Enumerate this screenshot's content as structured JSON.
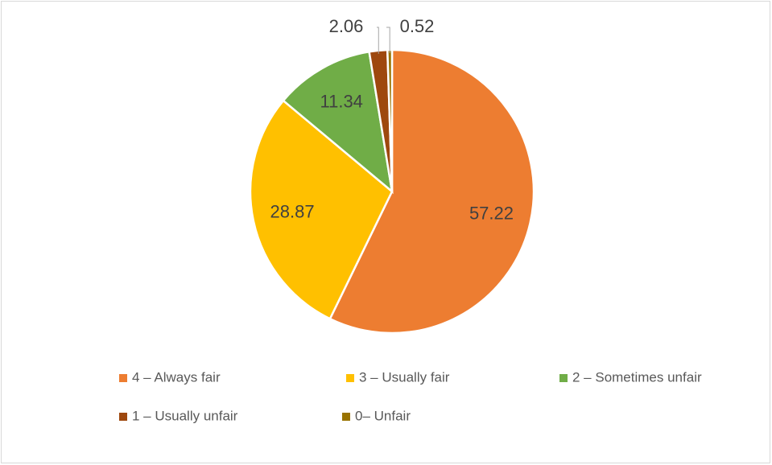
{
  "chart_data": {
    "type": "pie",
    "categories": [
      "4 – Always fair",
      "3 – Usually fair",
      "2 – Sometimes unfair",
      "1 – Usually unfair",
      "0– Unfair"
    ],
    "values": [
      57.22,
      28.87,
      11.34,
      2.06,
      0.52
    ],
    "colors": [
      "#ed7d31",
      "#ffc000",
      "#70ad47",
      "#9e480e",
      "#997300"
    ],
    "legend": "bottom"
  }
}
